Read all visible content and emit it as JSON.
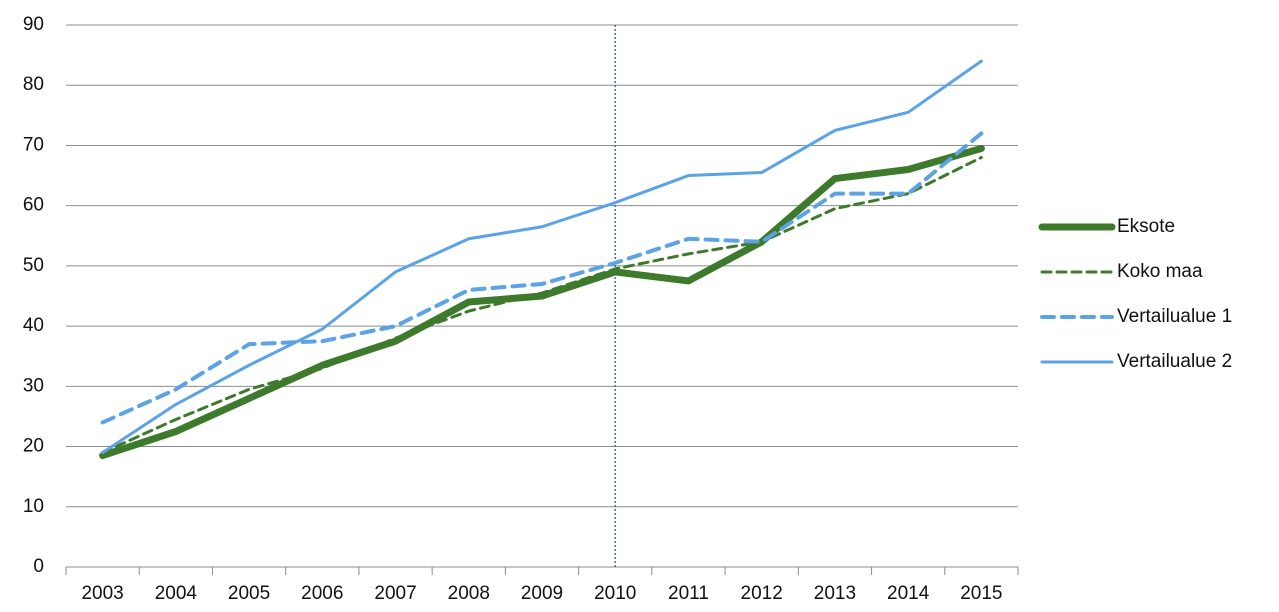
{
  "chart_data": {
    "type": "line",
    "categories": [
      "2003",
      "2004",
      "2005",
      "2006",
      "2007",
      "2008",
      "2009",
      "2010",
      "2011",
      "2012",
      "2013",
      "2014",
      "2015"
    ],
    "series": [
      {
        "name": "Eksote",
        "color": "#3e7a2c",
        "width": 7,
        "dashed": false,
        "values": [
          18.5,
          22.5,
          28,
          33.5,
          37.5,
          44,
          45,
          49,
          47.5,
          54,
          64.5,
          66,
          69.5
        ]
      },
      {
        "name": "Koko maa",
        "color": "#3e7a2c",
        "width": 3,
        "dashed": true,
        "values": [
          19,
          24.5,
          29.5,
          33,
          38,
          42.5,
          45.5,
          49.5,
          52,
          54,
          59.5,
          62,
          68
        ]
      },
      {
        "name": "Vertailualue 1",
        "color": "#5ba3e6",
        "width": 4,
        "dashed": true,
        "values": [
          24,
          29.5,
          37,
          37.5,
          40,
          46,
          47,
          50.5,
          54.5,
          54,
          62,
          62,
          72
        ]
      },
      {
        "name": "Vertailualue 2",
        "color": "#5ba3e6",
        "width": 3,
        "dashed": false,
        "values": [
          19,
          27,
          33.5,
          39.5,
          49,
          54.5,
          56.5,
          60.5,
          65,
          65.5,
          72.5,
          75.5,
          84
        ]
      }
    ],
    "vline": "2010",
    "ylim": [
      0,
      90
    ],
    "yticks": [
      0,
      10,
      20,
      30,
      40,
      50,
      60,
      70,
      80,
      90
    ],
    "grid": true,
    "legend": "right"
  }
}
